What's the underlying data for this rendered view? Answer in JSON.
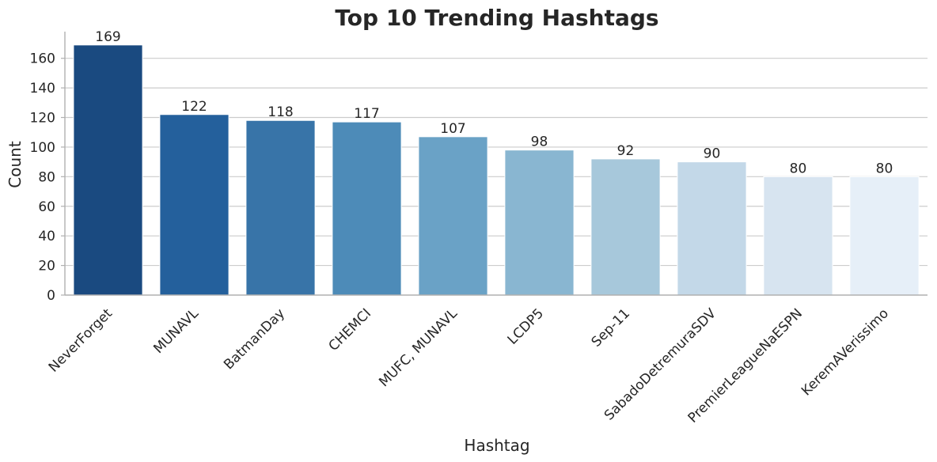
{
  "chart_data": {
    "type": "bar",
    "title": "Top 10 Trending Hashtags",
    "xlabel": "Hashtag",
    "ylabel": "Count",
    "categories": [
      "NeverForget",
      "MUNAVL",
      "BatmanDay",
      "CHEMCI",
      "MUFC, MUNAVL",
      "LCDP5",
      "Sep-11",
      "SabadoDetremuraSDV",
      "PremierLeagueNaESPN",
      "KeremAVerissimo"
    ],
    "values": [
      169,
      122,
      118,
      117,
      107,
      98,
      92,
      90,
      80,
      80
    ],
    "value_labels": [
      "169",
      "122",
      "118",
      "117",
      "107",
      "98",
      "92",
      "90",
      "80",
      "80"
    ],
    "colors": [
      "#1a4a80",
      "#24609c",
      "#3874a8",
      "#4d8bb8",
      "#6aa2c6",
      "#89b6d1",
      "#a7c8db",
      "#c3d8e8",
      "#d7e4f0",
      "#e6eff8"
    ],
    "ylim": [
      0,
      178
    ],
    "yticks": [
      0,
      20,
      40,
      60,
      80,
      100,
      120,
      140,
      160
    ],
    "ytick_labels": [
      "0",
      "20",
      "40",
      "60",
      "80",
      "100",
      "120",
      "140",
      "160"
    ],
    "grid": "y-axis horizontal lines",
    "legend": "none",
    "x_tick_rotation": "45 degrees"
  }
}
